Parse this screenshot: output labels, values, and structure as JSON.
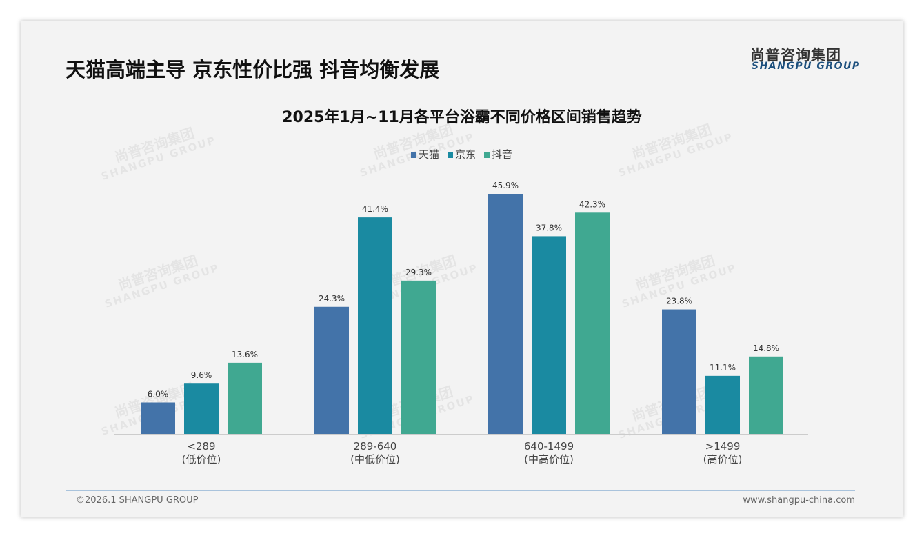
{
  "header": {
    "title": "天猫高端主导 京东性价比强 抖音均衡发展",
    "logo_cn": "尚普咨询集团",
    "logo_en": "SHANGPU GROUP"
  },
  "watermark": {
    "cn": "尚普咨询集团",
    "en": "SHANGPU GROUP"
  },
  "footer": {
    "copyright": "©2026.1 SHANGPU GROUP",
    "website": "www.shangpu-china.com"
  },
  "chart_data": {
    "type": "bar",
    "title": "2025年1月~11月各平台浴霸不同价格区间销售趋势",
    "categories": [
      "<289",
      "289-640",
      "640-1499",
      ">1499"
    ],
    "category_sublabels": [
      "(低价位)",
      "(中低价位)",
      "(中高价位)",
      "(高价位)"
    ],
    "series": [
      {
        "name": "天猫",
        "color": "#4373a9",
        "values": [
          6.0,
          24.3,
          45.9,
          23.8
        ]
      },
      {
        "name": "京东",
        "color": "#1a8aa1",
        "values": [
          9.6,
          41.4,
          37.8,
          11.1
        ]
      },
      {
        "name": "抖音",
        "color": "#40a891",
        "values": [
          13.6,
          29.3,
          42.3,
          14.8
        ]
      }
    ],
    "unit": "%",
    "ylim": [
      0,
      50
    ],
    "legend": "top-center",
    "grid": false
  }
}
